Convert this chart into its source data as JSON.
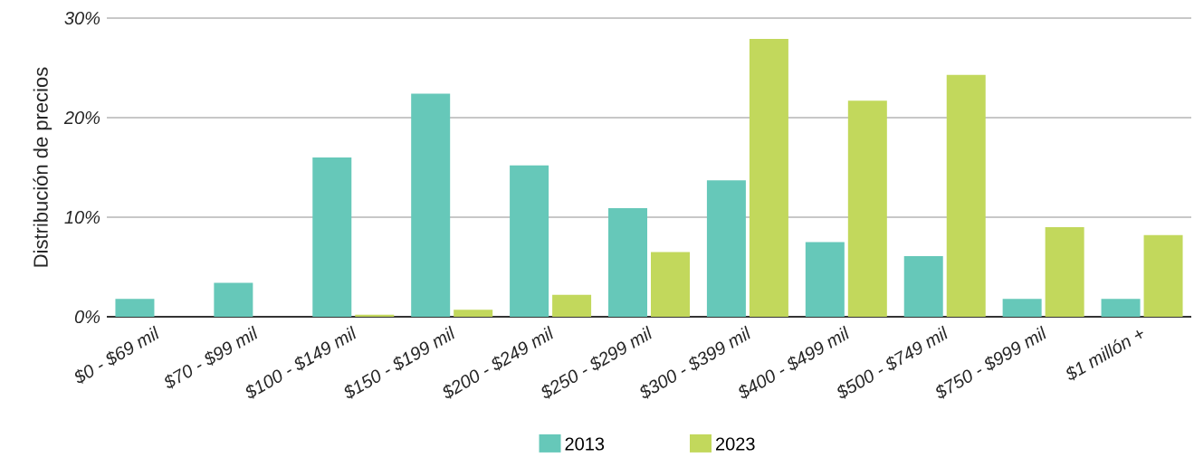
{
  "chart_data": {
    "type": "bar",
    "ylabel": "Distribución de precios",
    "categories": [
      "$0 - $69 mil",
      "$70 - $99 mil",
      "$100 - $149 mil",
      "$150 - $199 mil",
      "$200 - $249 mil",
      "$250 - $299 mil",
      "$300 - $399 mil",
      "$400 - $499 mil",
      "$500 - $749 mil",
      "$750 - $999 mil",
      "$1 millón +"
    ],
    "series": [
      {
        "name": "2013",
        "color": "#66c8b9",
        "values": [
          1.8,
          3.4,
          16.0,
          22.4,
          15.2,
          10.9,
          13.7,
          7.5,
          6.1,
          1.8,
          1.8
        ]
      },
      {
        "name": "2023",
        "color": "#c2d85c",
        "values": [
          0,
          0,
          0.2,
          0.7,
          2.2,
          6.5,
          27.9,
          21.7,
          24.3,
          9.0,
          8.2
        ]
      }
    ],
    "ylim": [
      0,
      30
    ],
    "yticks": [
      {
        "value": 0,
        "label": "0%"
      },
      {
        "value": 10,
        "label": "10%"
      },
      {
        "value": 20,
        "label": "20%"
      },
      {
        "value": 30,
        "label": "30%"
      }
    ],
    "grid": "y",
    "legend": "bottom"
  }
}
